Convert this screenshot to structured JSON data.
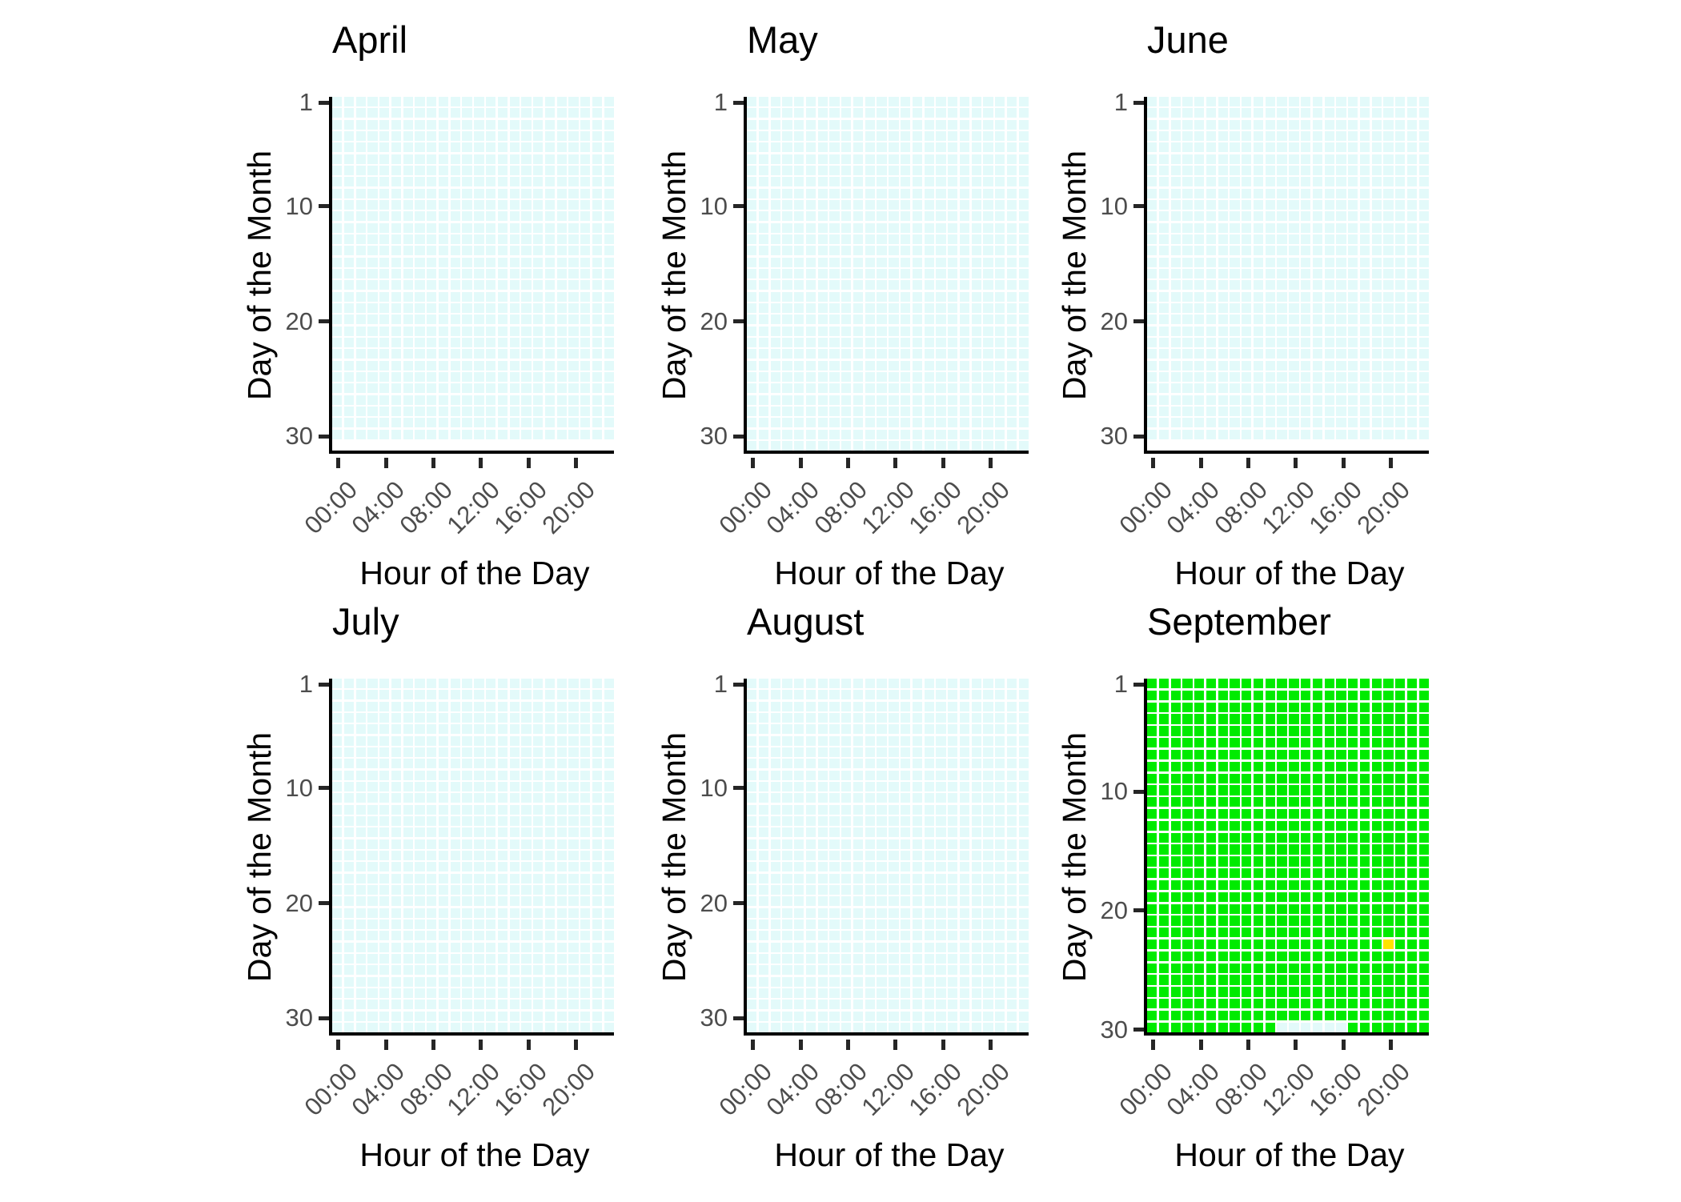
{
  "colors": {
    "background": "#FFFFFF",
    "axis_text": "#4D4D4D",
    "title_text": "#000000",
    "axis_line": "#000000",
    "tick_mark": "#262626"
  },
  "chart_data": {
    "type": "heatmap",
    "description": "Faceted calendar heatmap: tiles for each hour of each day, one facet per month",
    "x": {
      "label": "Hour of the Day",
      "range_hours": [
        0,
        23
      ],
      "tick_hours": [
        0,
        4,
        8,
        12,
        16,
        20
      ],
      "ticks": [
        "00:00",
        "04:00",
        "08:00",
        "12:00",
        "16:00",
        "20:00"
      ],
      "tick_angle_deg": 45
    },
    "y": {
      "label": "Day of the Month",
      "tick_days": [
        1,
        10,
        20,
        30
      ],
      "ticks": [
        "1",
        "10",
        "20",
        "30"
      ],
      "direction": "day 1 at top, day 30/31 at bottom"
    },
    "tile_colors": {
      "cyan": "#E3FAFA",
      "green": "#00EB00",
      "yellow": "#FFE300"
    },
    "legend": "none visible",
    "grid": "off",
    "facets": [
      {
        "title": "April",
        "days": 30,
        "row_slots": 31,
        "base": "cyan",
        "overrides": []
      },
      {
        "title": "May",
        "days": 31,
        "row_slots": 31,
        "base": "cyan",
        "overrides": []
      },
      {
        "title": "June",
        "days": 30,
        "row_slots": 31,
        "base": "cyan",
        "overrides": []
      },
      {
        "title": "July",
        "days": 31,
        "row_slots": 31,
        "base": "cyan",
        "overrides": []
      },
      {
        "title": "August",
        "days": 31,
        "row_slots": 31,
        "base": "cyan",
        "overrides": []
      },
      {
        "title": "September",
        "days": 30,
        "row_slots": 30,
        "base": "green",
        "overrides": [
          {
            "day": 23,
            "hour_start": 20,
            "hour_end": 20,
            "color": "yellow"
          },
          {
            "day": 30,
            "hour_start": 11,
            "hour_end": 16,
            "color": "cyan"
          }
        ]
      }
    ]
  }
}
